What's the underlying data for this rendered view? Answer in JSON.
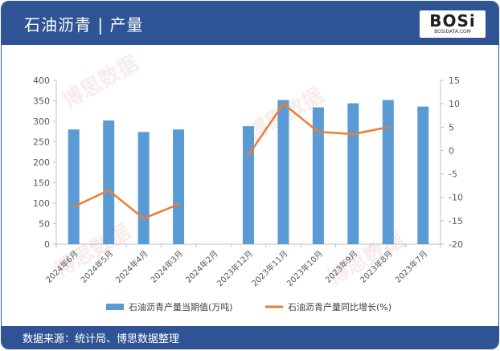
{
  "header": {
    "title": "石油沥青 | 产量"
  },
  "logo": {
    "text": "BOSi",
    "subtext": "BOSIDATA.COM"
  },
  "watermark": {
    "text": "博思数据"
  },
  "footer": {
    "source": "数据来源：统计局、博思数据整理"
  },
  "colors": {
    "header_bg": "#2f5496",
    "bar": "#5b9bd5",
    "line": "#ed7d31"
  },
  "chart_data": {
    "type": "bar+line",
    "categories": [
      "2024年6月",
      "2024年5月",
      "2024年4月",
      "2024年3月",
      "2024年2月",
      "2023年12月",
      "2023年11月",
      "2023年10月",
      "2023年9月",
      "2023年8月",
      "2023年7月"
    ],
    "series": [
      {
        "name": "石油沥青产量当期值(万吨)",
        "type": "bar",
        "axis": "left",
        "values": [
          280,
          302,
          274,
          280,
          null,
          288,
          352,
          334,
          344,
          352,
          336
        ]
      },
      {
        "name": "石油沥青产量同比增长(%)",
        "type": "line",
        "axis": "right",
        "values": [
          -12,
          -8.5,
          -14.5,
          -11.5,
          null,
          -1,
          10,
          4,
          3.5,
          5,
          null
        ]
      }
    ],
    "y_left": {
      "min": 0,
      "max": 400,
      "ticks": [
        0,
        50,
        100,
        150,
        200,
        250,
        300,
        350,
        400
      ]
    },
    "y_right": {
      "min": -20,
      "max": 15,
      "ticks": [
        -20,
        -15,
        -10,
        -5,
        0,
        5,
        10,
        15
      ]
    },
    "grid": false,
    "legend": "bottom"
  }
}
